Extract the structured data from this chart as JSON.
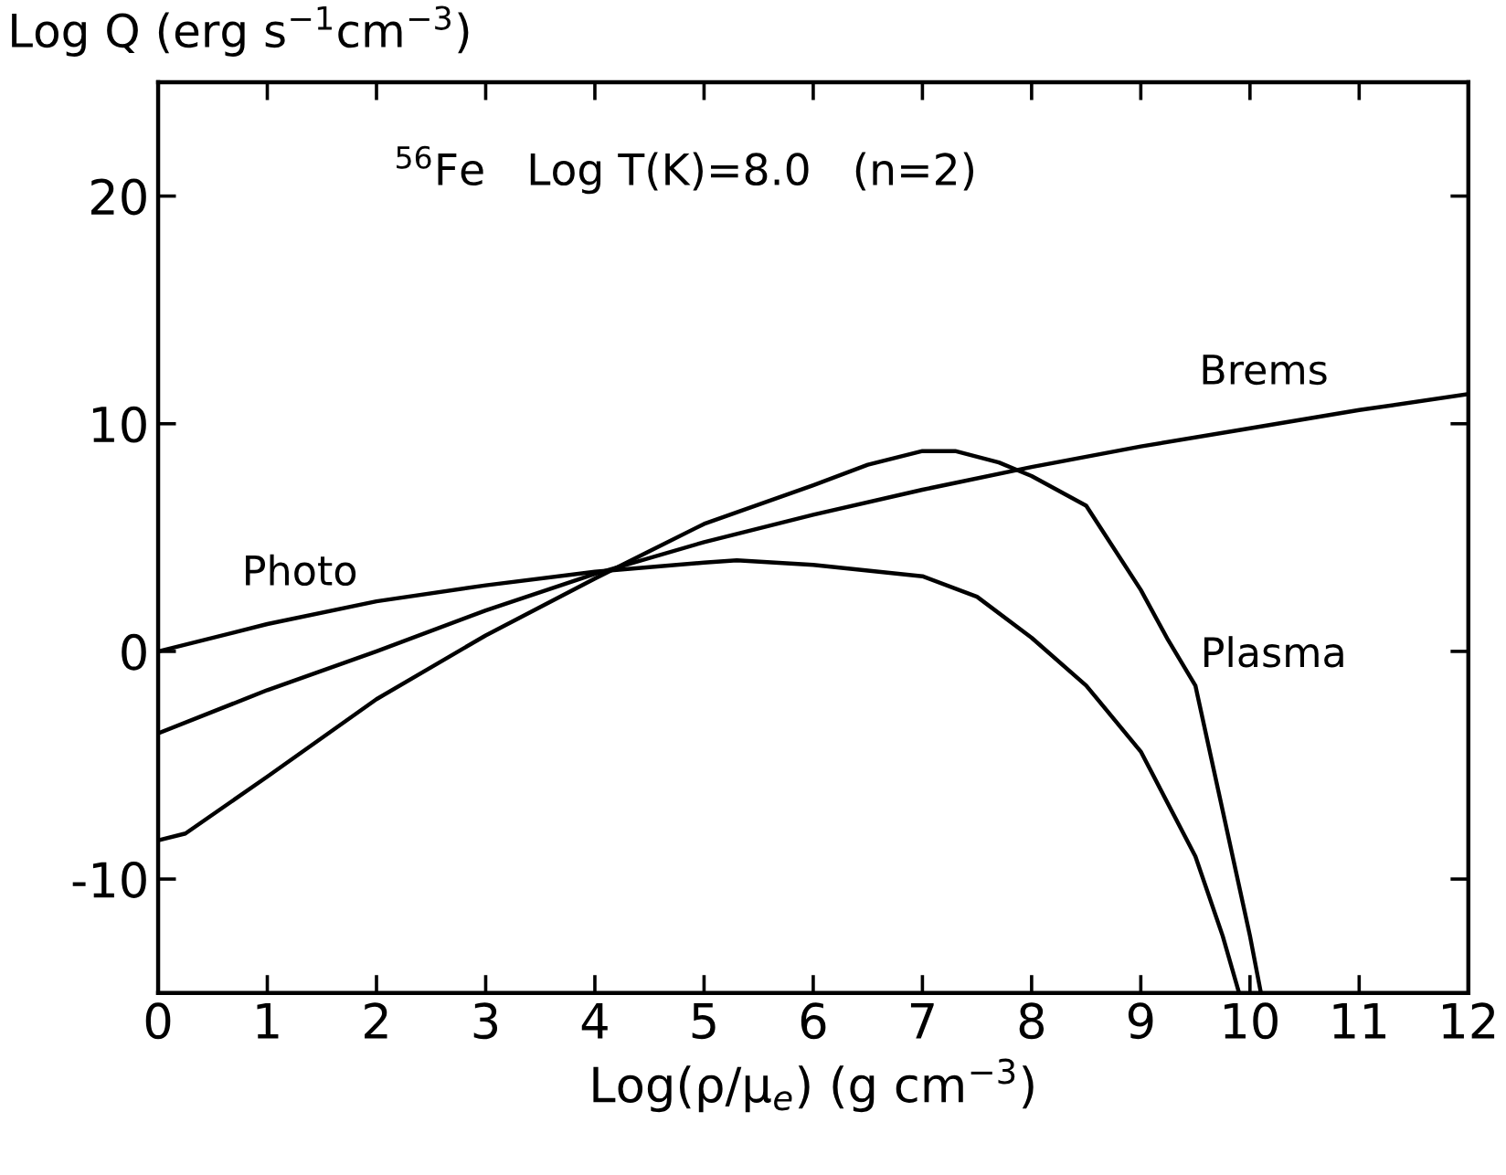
{
  "chart_data": {
    "type": "line",
    "xlabel": "Log(ρ/μ$_{e}$) (g cm$^{−3}$)",
    "ylabel": "Log Q (erg s$^{−1}$cm$^{−3}$)",
    "annotations": [
      "$^{56}$Fe   Log T(K)=8.0   (n=2)"
    ],
    "xlim": [
      0,
      12
    ],
    "ylim": [
      -15,
      25
    ],
    "xticks": [
      0,
      1,
      2,
      3,
      4,
      5,
      6,
      7,
      8,
      9,
      10,
      11,
      12
    ],
    "yticks": [
      -10,
      0,
      10,
      20
    ],
    "grid": false,
    "legend": false,
    "line_style": "solid",
    "marker": "none",
    "series": [
      {
        "name": "Photo",
        "color": "#000000",
        "x": [
          0,
          1,
          2,
          3,
          4,
          5,
          5.3,
          6,
          7,
          7.5,
          8,
          8.5,
          9,
          9.5,
          9.75,
          9.9
        ],
        "values": [
          0,
          1.2,
          2.2,
          2.9,
          3.5,
          3.9,
          4.0,
          3.8,
          3.3,
          2.4,
          0.6,
          -1.5,
          -4.4,
          -9,
          -12.5,
          -15
        ]
      },
      {
        "name": "Brems",
        "color": "#000000",
        "x": [
          0,
          1,
          2,
          3,
          4,
          5,
          6,
          7,
          8,
          9,
          10,
          11,
          12
        ],
        "values": [
          -3.6,
          -1.7,
          0,
          1.8,
          3.4,
          4.8,
          6,
          7.1,
          8.1,
          9,
          9.8,
          10.6,
          11.3
        ]
      },
      {
        "name": "Plasma",
        "color": "#000000",
        "x": [
          0,
          0.25,
          1,
          2,
          3,
          4,
          4.5,
          5,
          6,
          6.5,
          7,
          7.3,
          7.7,
          8,
          8.5,
          9,
          9.25,
          9.5,
          9.75,
          10,
          10.1
        ],
        "values": [
          -8.3,
          -8,
          -5.5,
          -2.1,
          0.7,
          3.2,
          4.4,
          5.6,
          7.3,
          8.2,
          8.8,
          8.8,
          8.3,
          7.7,
          6.4,
          2.7,
          0.5,
          -1.5,
          -7,
          -12.5,
          -15
        ]
      }
    ]
  }
}
